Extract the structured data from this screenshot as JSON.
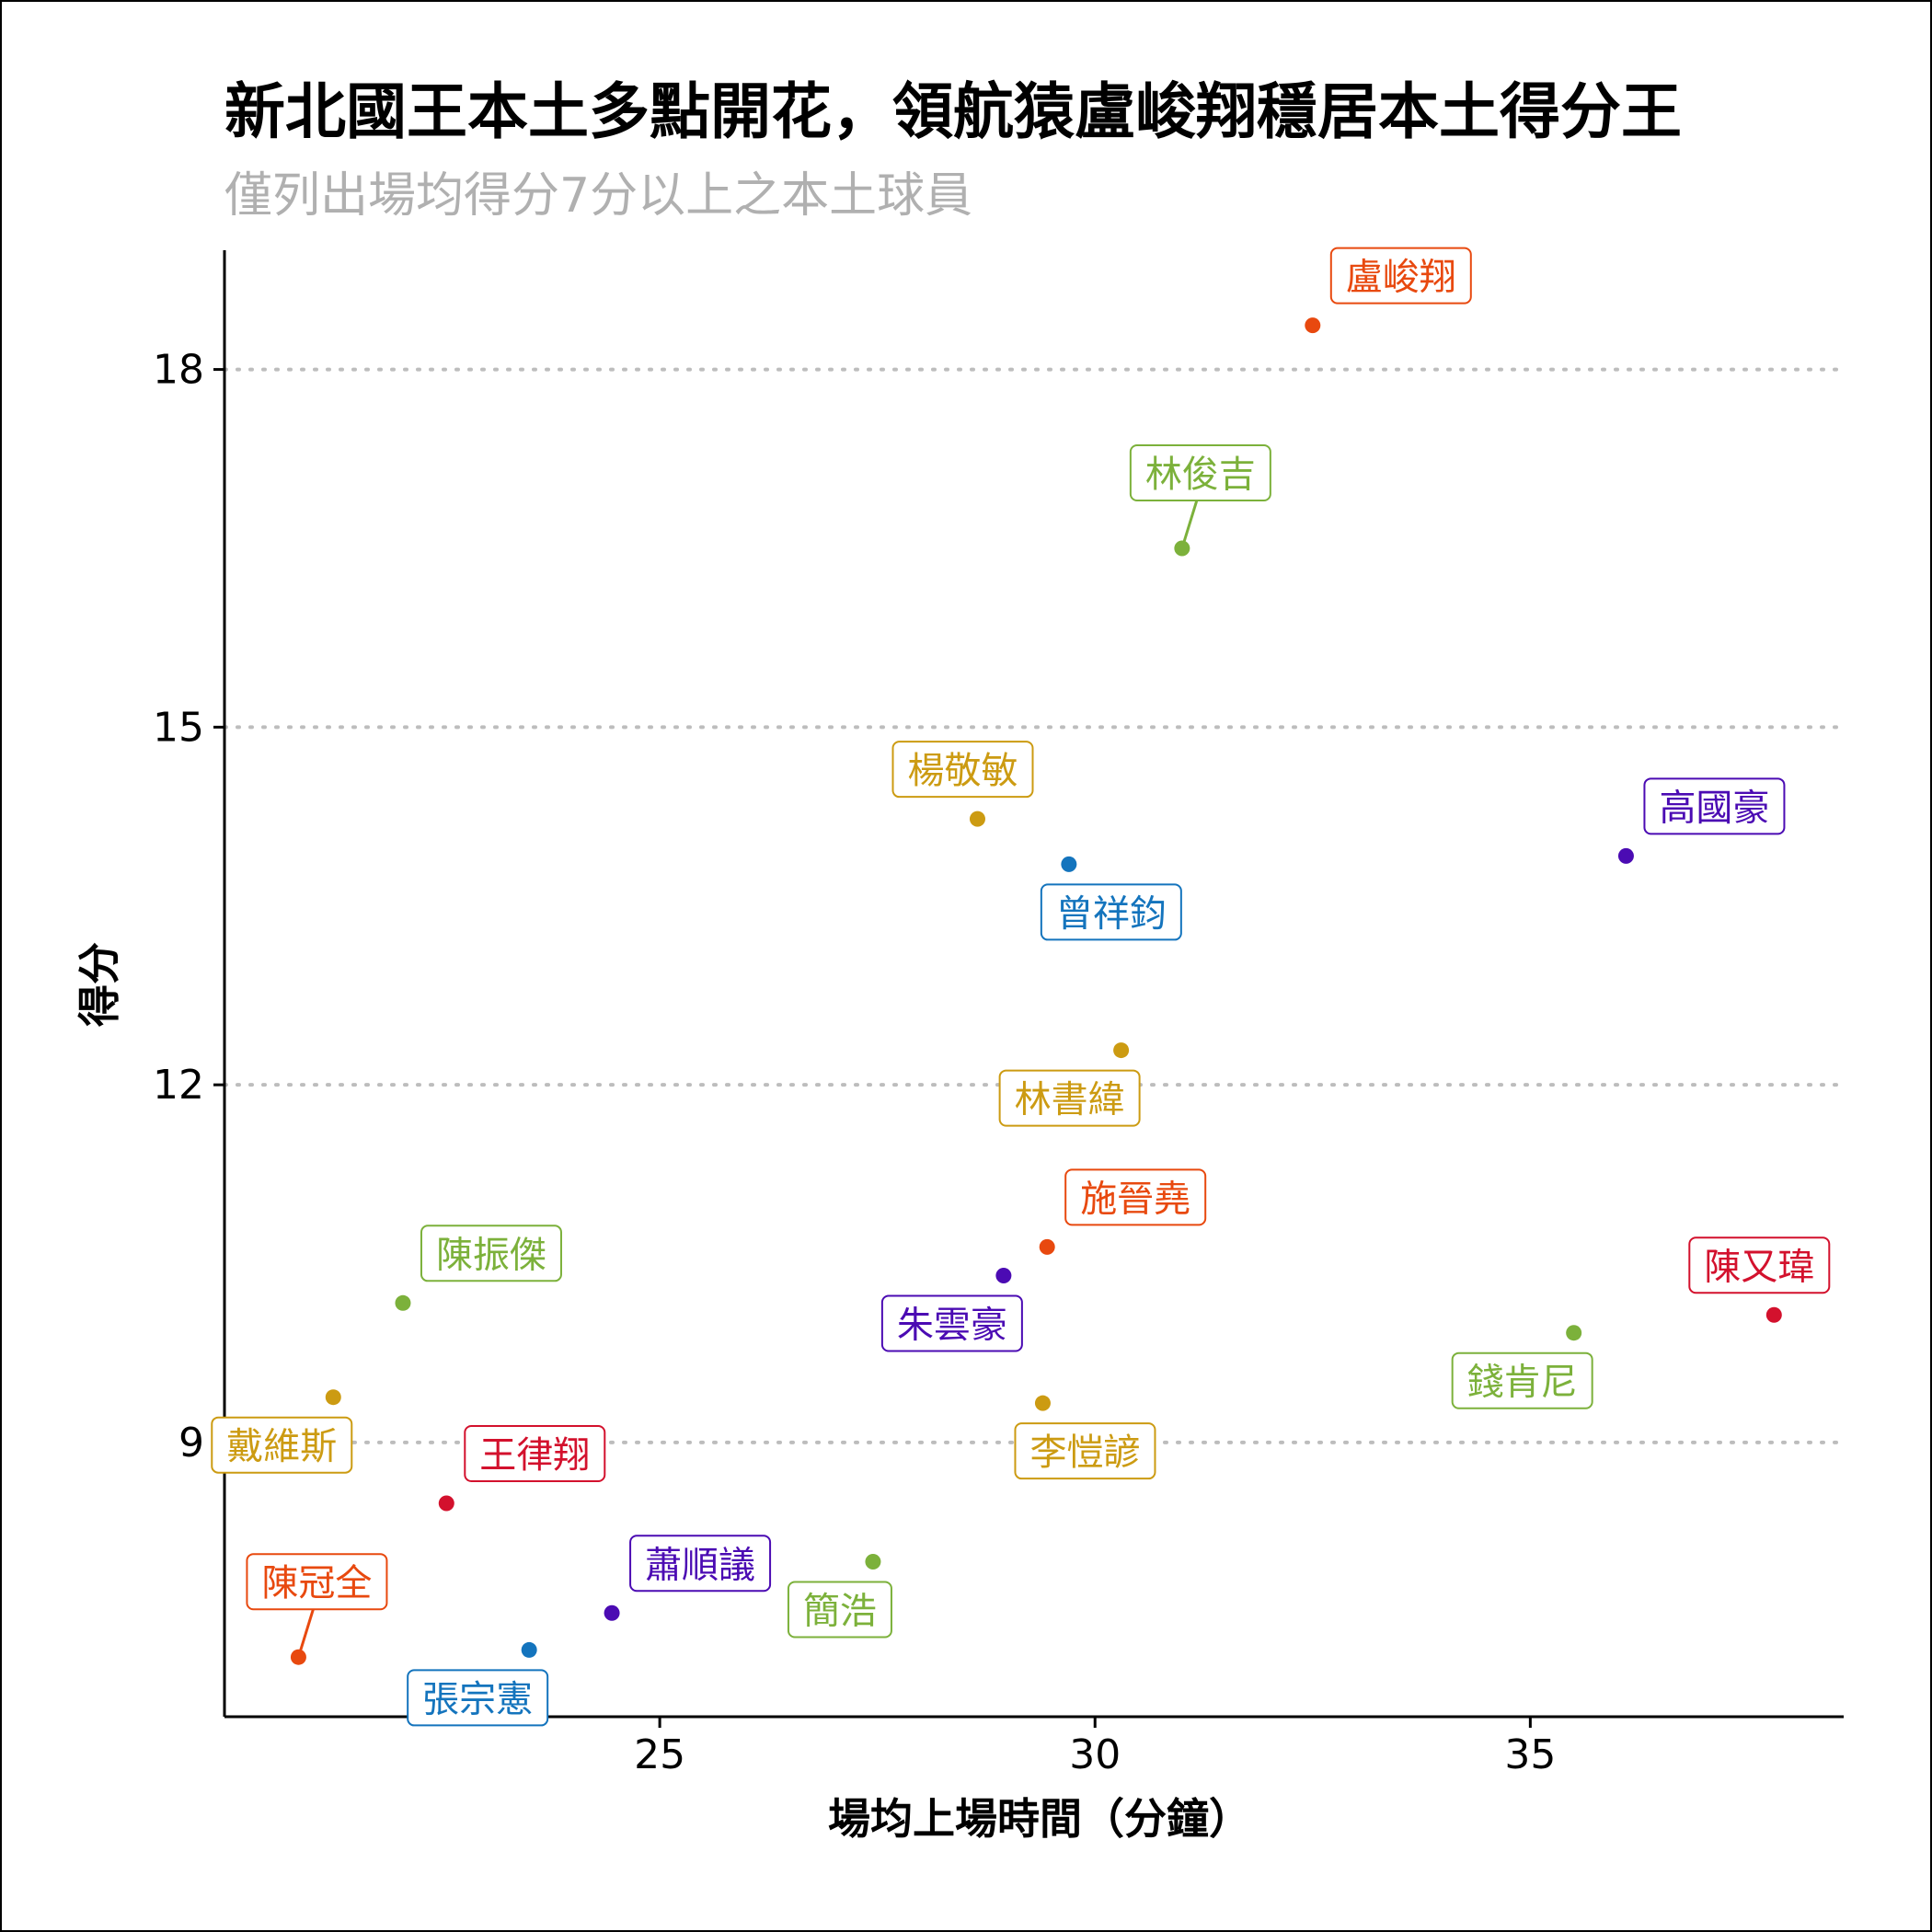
{
  "chart_data": {
    "type": "scatter",
    "title": "新北國王本土多點開花，領航猿盧峻翔穩居本土得分王",
    "subtitle": "僅列出場均得分7分以上之本土球員",
    "xlabel": "場均上場時間（分鐘）",
    "ylabel": "得分",
    "xlim": [
      20.0,
      38.6
    ],
    "ylim": [
      6.7,
      19.0
    ],
    "xticks": [
      25,
      30,
      35
    ],
    "yticks": [
      9,
      12,
      15,
      18
    ],
    "grid": "horizontal-dotted",
    "colors": {
      "title": "#000000",
      "subtitle": "#b0b0b0",
      "grid": "#bdbdbd",
      "axis": "#000000",
      "lbl_bg": "#ffffff"
    },
    "points": [
      {
        "name": "盧峻翔",
        "x": 32.5,
        "y": 18.37,
        "color": "#e8490f",
        "label_pos": "upper-right"
      },
      {
        "name": "林俊吉",
        "x": 31.0,
        "y": 16.5,
        "color": "#7cb13b",
        "label_pos": "upper"
      },
      {
        "name": "楊敬敏",
        "x": 28.65,
        "y": 14.23,
        "color": "#cc9b12",
        "label_pos": "upper-left"
      },
      {
        "name": "高國豪",
        "x": 36.1,
        "y": 13.92,
        "color": "#4b0bb3",
        "label_pos": "upper-right"
      },
      {
        "name": "曾祥鈞",
        "x": 29.7,
        "y": 13.85,
        "color": "#1474bd",
        "label_pos": "lower-right"
      },
      {
        "name": "林書緯",
        "x": 30.3,
        "y": 12.29,
        "color": "#cc9b12",
        "label_pos": "lower-left"
      },
      {
        "name": "施晉堯",
        "x": 29.45,
        "y": 10.64,
        "color": "#e8490f",
        "label_pos": "upper-right"
      },
      {
        "name": "朱雲豪",
        "x": 28.95,
        "y": 10.4,
        "color": "#4b0bb3",
        "label_pos": "lower-left"
      },
      {
        "name": "陳振傑",
        "x": 22.05,
        "y": 10.17,
        "color": "#7cb13b",
        "label_pos": "upper-right"
      },
      {
        "name": "陳又瑋",
        "x": 37.8,
        "y": 10.07,
        "color": "#d3112d",
        "label_pos": "upper-left"
      },
      {
        "name": "錢肯尼",
        "x": 35.5,
        "y": 9.92,
        "color": "#7cb13b",
        "label_pos": "lower-left"
      },
      {
        "name": "戴維斯",
        "x": 21.25,
        "y": 9.38,
        "color": "#cc9b12",
        "label_pos": "lower-left"
      },
      {
        "name": "李愷諺",
        "x": 29.4,
        "y": 9.33,
        "color": "#cc9b12",
        "label_pos": "lower-right"
      },
      {
        "name": "王律翔",
        "x": 22.55,
        "y": 8.49,
        "color": "#d3112d",
        "label_pos": "upper-right"
      },
      {
        "name": "簡浩",
        "x": 27.45,
        "y": 8.0,
        "color": "#7cb13b",
        "label_pos": "lower-left"
      },
      {
        "name": "蕭順議",
        "x": 24.45,
        "y": 7.57,
        "color": "#4b0bb3",
        "label_pos": "upper-right"
      },
      {
        "name": "張宗憲",
        "x": 23.5,
        "y": 7.26,
        "color": "#1474bd",
        "label_pos": "lower-left"
      },
      {
        "name": "陳冠全",
        "x": 20.85,
        "y": 7.2,
        "color": "#e8490f",
        "label_pos": "upper"
      }
    ]
  }
}
